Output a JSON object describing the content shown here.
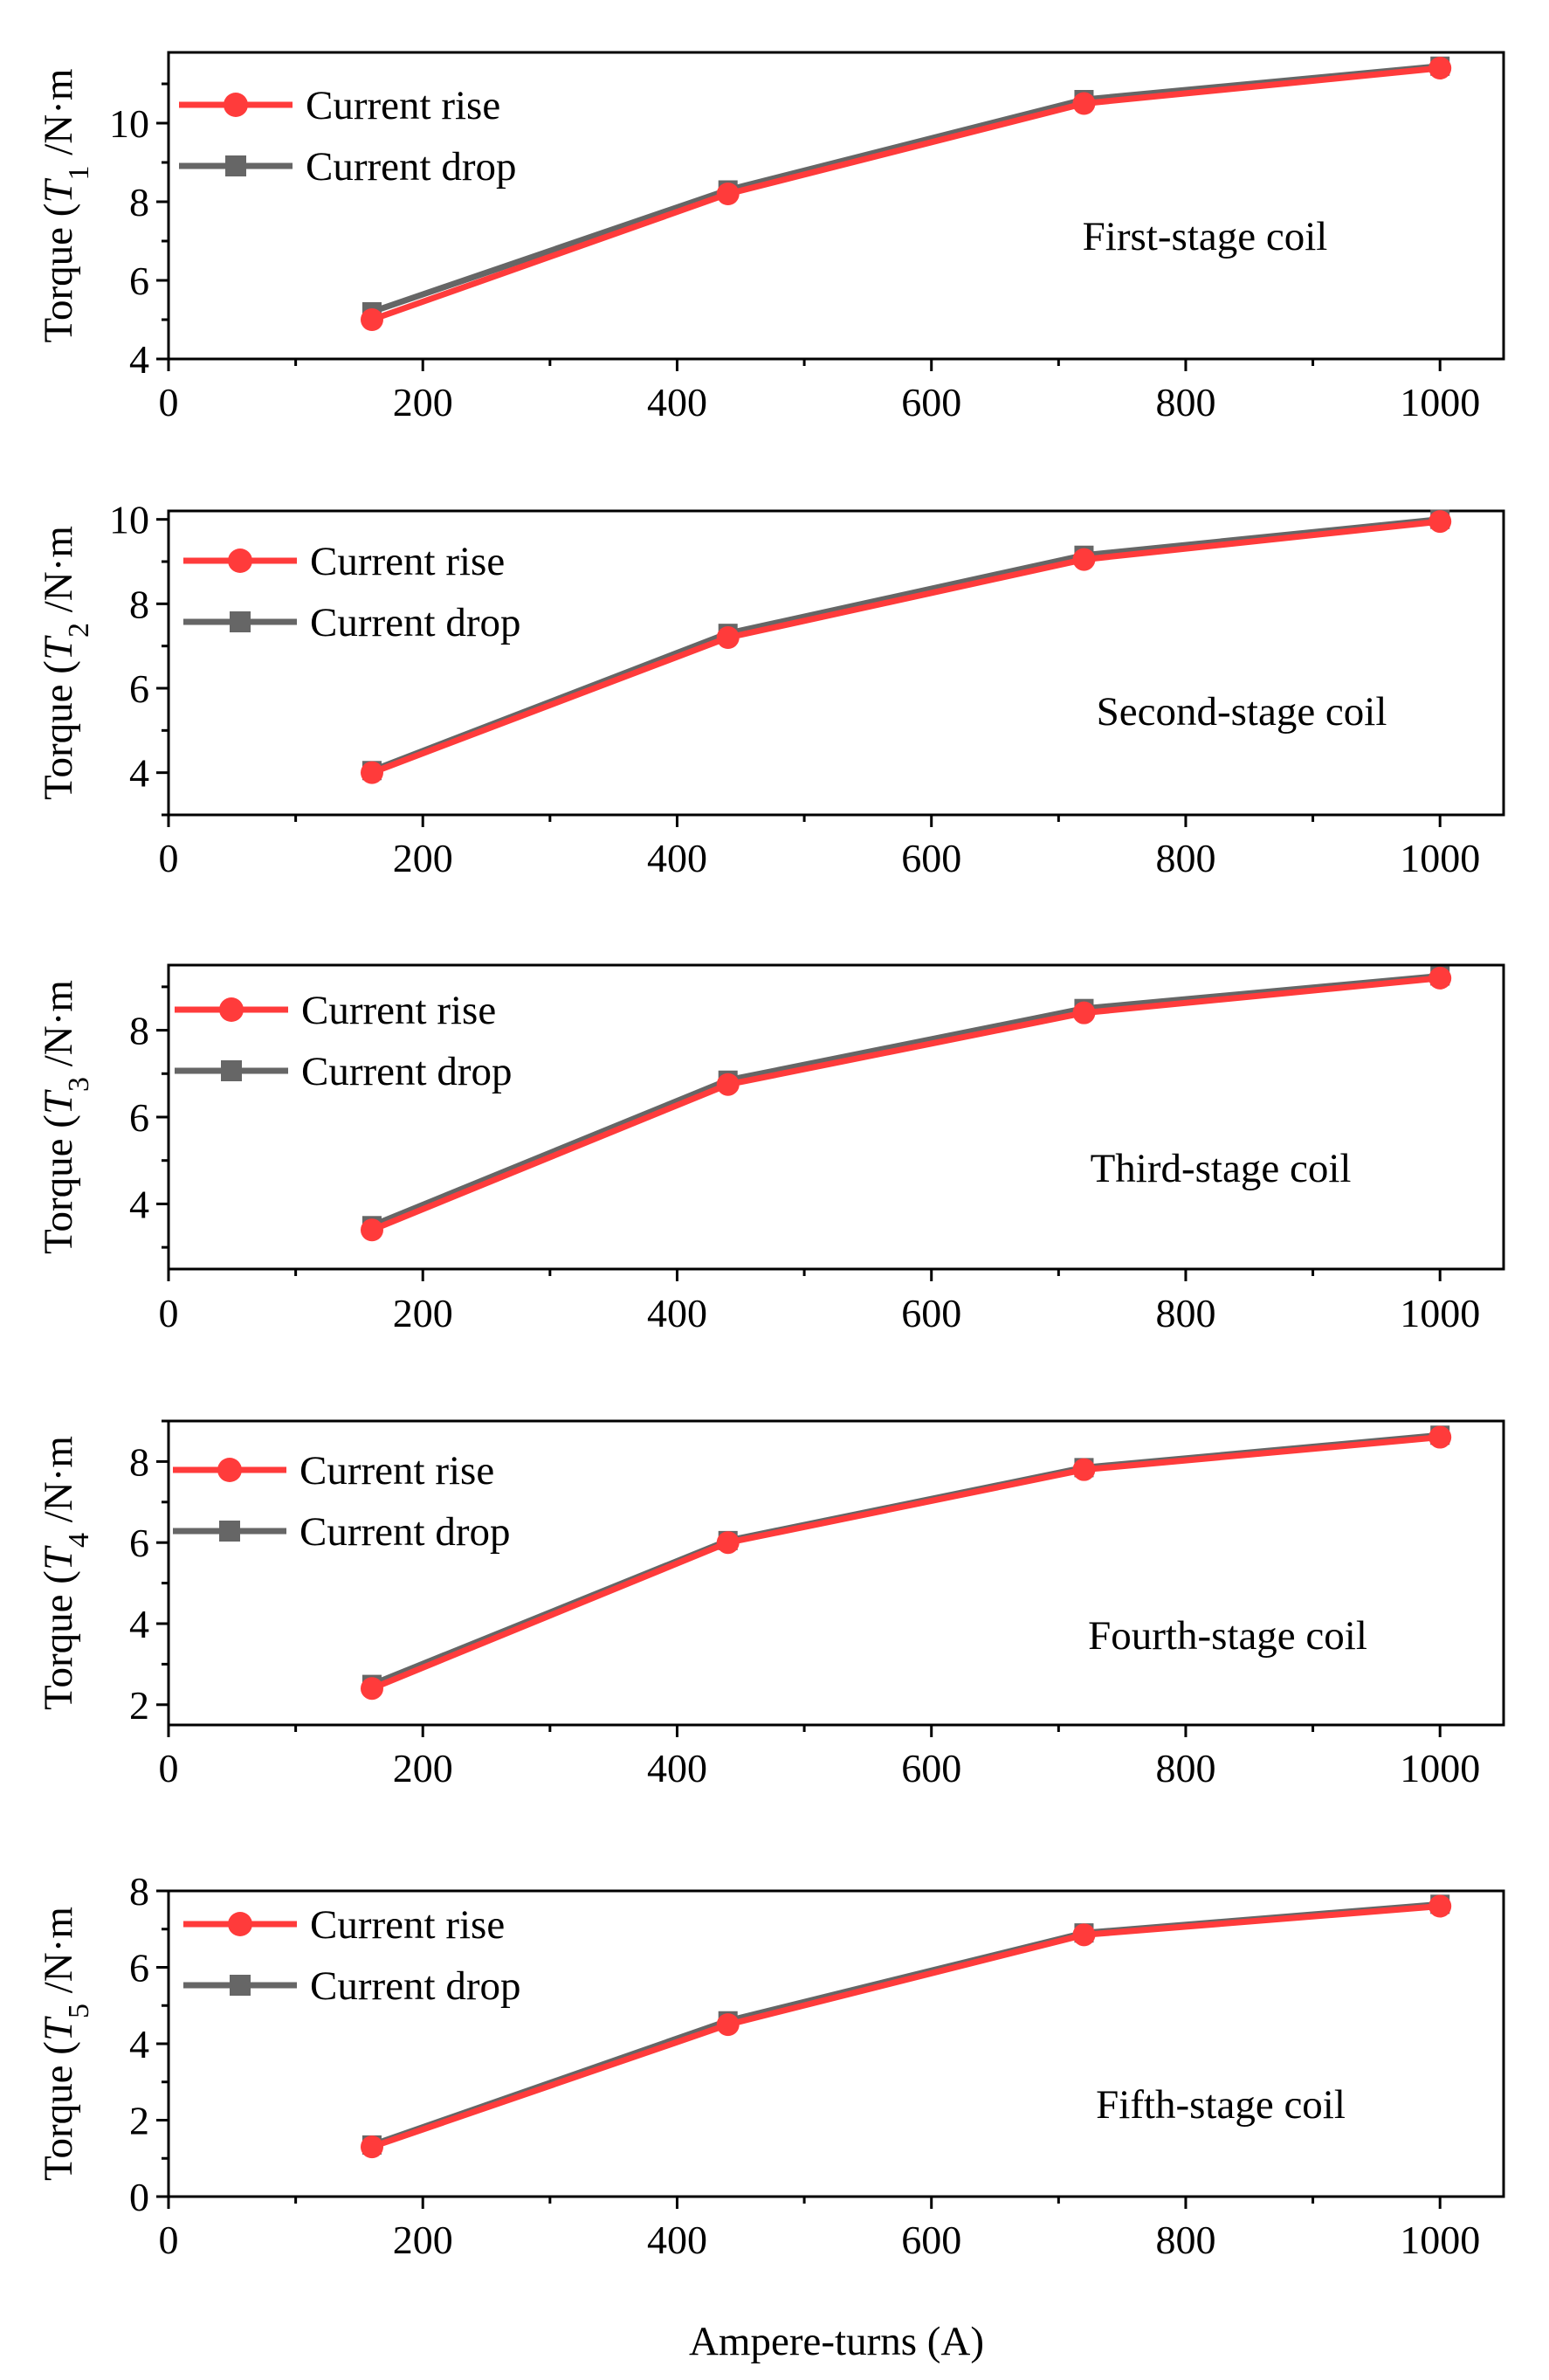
{
  "figure": {
    "xlabel": "Ampere-turns (A)",
    "colors": {
      "rise": "#ff3b3b",
      "drop": "#666666",
      "axis": "#000000"
    }
  },
  "chart_data": [
    {
      "type": "line",
      "title": "",
      "annotation": "First-stage coil",
      "ylabel": {
        "prefix": "Torque (",
        "var": "T",
        "sub": "1",
        "suffix": " /N·m"
      },
      "x": [
        160,
        440,
        720,
        1000
      ],
      "series": [
        {
          "name": "Current rise",
          "marker": "circle",
          "values": [
            5.0,
            8.2,
            10.5,
            11.4
          ]
        },
        {
          "name": "Current drop",
          "marker": "square",
          "values": [
            5.2,
            8.3,
            10.6,
            11.45
          ]
        }
      ],
      "xlim": [
        0,
        1050
      ],
      "ylim": [
        4,
        11.8
      ],
      "xticks": [
        0,
        200,
        400,
        600,
        800,
        1000
      ],
      "yticks": [
        4,
        6,
        8,
        10
      ],
      "ytick_minor": 1
    },
    {
      "type": "line",
      "title": "",
      "annotation": "Second-stage coil",
      "ylabel": {
        "prefix": "Torque (",
        "var": "T",
        "sub": "2",
        "suffix": " /N·m"
      },
      "x": [
        160,
        440,
        720,
        1000
      ],
      "series": [
        {
          "name": "Current rise",
          "marker": "circle",
          "values": [
            4.0,
            7.2,
            9.05,
            9.95
          ]
        },
        {
          "name": "Current drop",
          "marker": "square",
          "values": [
            4.05,
            7.3,
            9.15,
            10.0
          ]
        }
      ],
      "xlim": [
        0,
        1050
      ],
      "ylim": [
        3,
        10.2
      ],
      "xticks": [
        0,
        200,
        400,
        600,
        800,
        1000
      ],
      "yticks": [
        4,
        6,
        8,
        10
      ],
      "ytick_minor": 1
    },
    {
      "type": "line",
      "title": "",
      "annotation": "Third-stage coil",
      "ylabel": {
        "prefix": "Torque (",
        "var": "T",
        "sub": "3",
        "suffix": " /N·m"
      },
      "x": [
        160,
        440,
        720,
        1000
      ],
      "series": [
        {
          "name": "Current rise",
          "marker": "circle",
          "values": [
            3.4,
            6.75,
            8.4,
            9.2
          ]
        },
        {
          "name": "Current drop",
          "marker": "square",
          "values": [
            3.5,
            6.85,
            8.5,
            9.25
          ]
        }
      ],
      "xlim": [
        0,
        1050
      ],
      "ylim": [
        2.5,
        9.5
      ],
      "xticks": [
        0,
        200,
        400,
        600,
        800,
        1000
      ],
      "yticks": [
        4,
        6,
        8
      ],
      "ytick_minor": 1
    },
    {
      "type": "line",
      "title": "",
      "annotation": "Fourth-stage coil",
      "ylabel": {
        "prefix": "Torque (",
        "var": "T",
        "sub": "4",
        "suffix": " /N·m"
      },
      "x": [
        160,
        440,
        720,
        1000
      ],
      "series": [
        {
          "name": "Current rise",
          "marker": "circle",
          "values": [
            2.4,
            6.0,
            7.8,
            8.6
          ]
        },
        {
          "name": "Current drop",
          "marker": "square",
          "values": [
            2.5,
            6.05,
            7.85,
            8.65
          ]
        }
      ],
      "xlim": [
        0,
        1050
      ],
      "ylim": [
        1.5,
        9.0
      ],
      "xticks": [
        0,
        200,
        400,
        600,
        800,
        1000
      ],
      "yticks": [
        2,
        4,
        6,
        8
      ],
      "ytick_minor": 1
    },
    {
      "type": "line",
      "title": "",
      "annotation": "Fifth-stage coil",
      "ylabel": {
        "prefix": "Torque (",
        "var": "T",
        "sub": "5",
        "suffix": " /N·m"
      },
      "x": [
        160,
        440,
        720,
        1000
      ],
      "series": [
        {
          "name": "Current rise",
          "marker": "circle",
          "values": [
            1.3,
            4.5,
            6.85,
            7.6
          ]
        },
        {
          "name": "Current drop",
          "marker": "square",
          "values": [
            1.35,
            4.6,
            6.9,
            7.65
          ]
        }
      ],
      "xlim": [
        0,
        1050
      ],
      "ylim": [
        0,
        8
      ],
      "xticks": [
        0,
        200,
        400,
        600,
        800,
        1000
      ],
      "yticks": [
        0,
        2,
        4,
        6,
        8
      ],
      "ytick_minor": 1
    }
  ]
}
